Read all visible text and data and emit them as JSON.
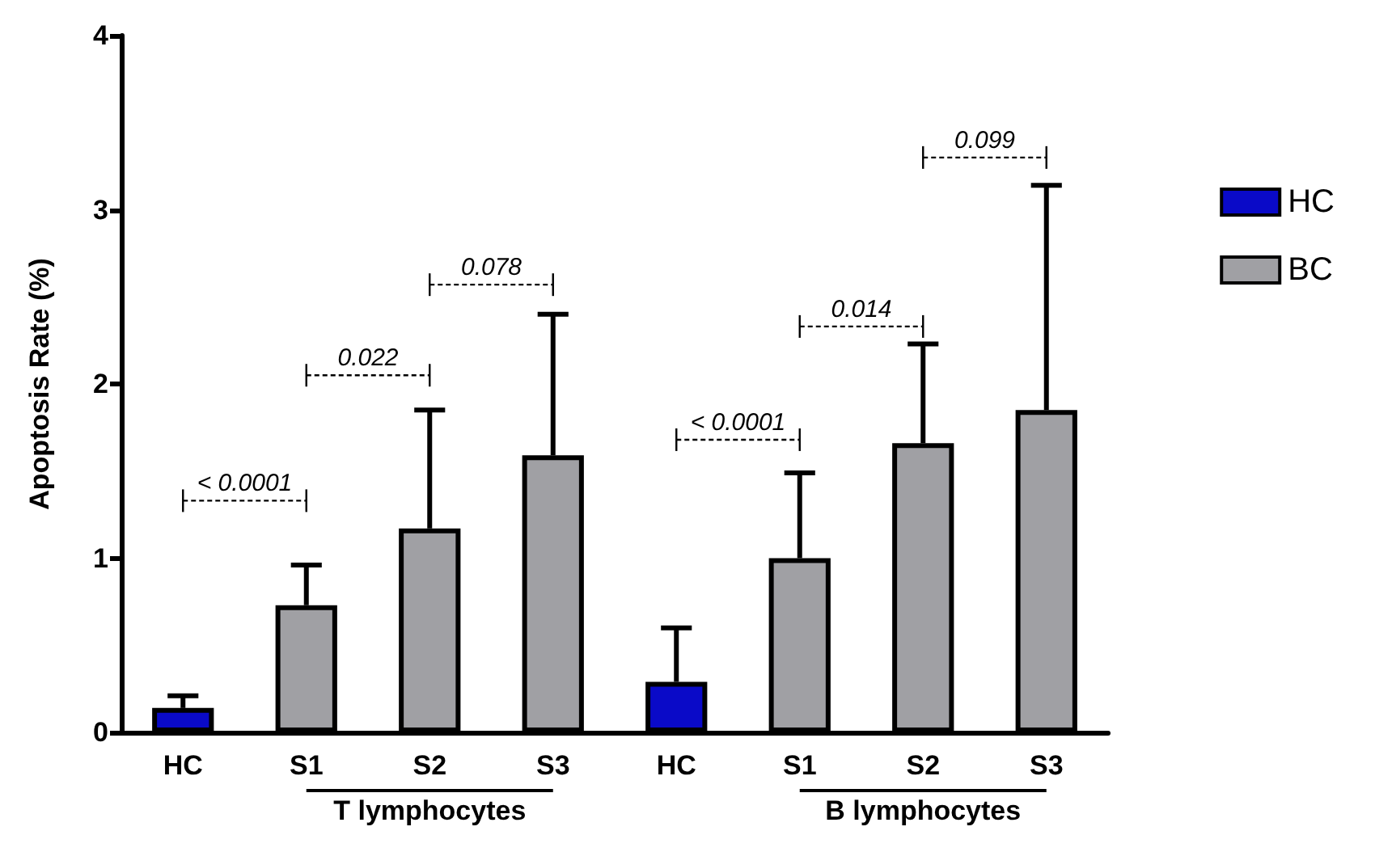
{
  "chart_data": {
    "type": "bar",
    "ylabel": "Apoptosis Rate (%)",
    "categories": [
      "HC",
      "S1",
      "S2",
      "S3",
      "HC",
      "S1",
      "S2",
      "S3"
    ],
    "series": [
      {
        "name": "HC",
        "color": "#0a0ac8",
        "values": [
          0.14,
          null,
          null,
          null,
          0.29,
          null,
          null,
          null
        ],
        "errors": [
          [
            0.14,
            0.21
          ],
          null,
          null,
          null,
          [
            0.29,
            0.6
          ],
          null,
          null,
          null
        ]
      },
      {
        "name": "BC",
        "color": "#a0a0a4",
        "values": [
          null,
          0.73,
          1.17,
          1.59,
          null,
          1.0,
          1.66,
          1.85
        ],
        "errors": [
          null,
          [
            0.73,
            0.96
          ],
          [
            1.17,
            1.85
          ],
          [
            1.59,
            2.4
          ],
          null,
          [
            1.0,
            1.49
          ],
          [
            1.66,
            2.23
          ],
          [
            1.85,
            3.14
          ]
        ]
      }
    ],
    "ylim": [
      0,
      4
    ],
    "yticks": [
      0,
      1,
      2,
      3,
      4
    ],
    "grid": false,
    "legend": "right",
    "annotations": [
      "< 0.0001",
      "0.022",
      "0.078",
      "< 0.0001",
      "0.014",
      "0.099",
      "T lymphocytes",
      "B lymphocytes"
    ]
  }
}
